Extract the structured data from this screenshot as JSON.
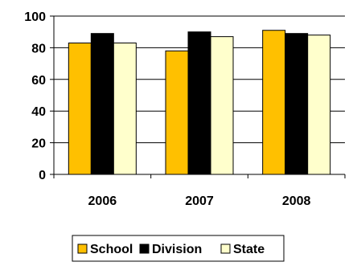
{
  "chart_data": {
    "type": "bar",
    "title": "",
    "xlabel": "",
    "ylabel": "",
    "categories": [
      "2006",
      "2007",
      "2008"
    ],
    "ylim": [
      0,
      100
    ],
    "yticks": [
      "0",
      "20",
      "40",
      "60",
      "80",
      "100"
    ],
    "grid": "horizontal",
    "legend_position": "bottom",
    "series": [
      {
        "name": "School",
        "values": [
          83,
          78,
          91
        ],
        "color": "#FFC000"
      },
      {
        "name": "Division",
        "values": [
          89,
          90,
          89
        ],
        "color": "#000000"
      },
      {
        "name": "State",
        "values": [
          83,
          87,
          88
        ],
        "color": "#FFFFCC"
      }
    ]
  }
}
